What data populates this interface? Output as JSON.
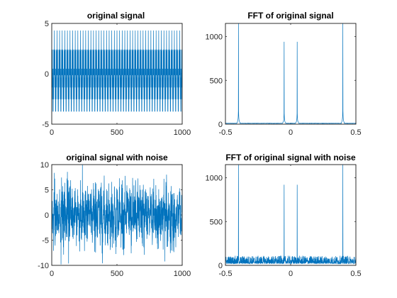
{
  "figure": {
    "background": "#ffffff",
    "line_color": "#0072BD"
  },
  "chart_data": [
    {
      "type": "line",
      "title": "original signal",
      "xlabel": "",
      "ylabel": "",
      "xlim": [
        0,
        1000
      ],
      "ylim": [
        -5,
        5
      ],
      "xticks": [
        0,
        500,
        1000
      ],
      "yticks": [
        -5,
        0,
        5
      ],
      "grid": false,
      "series": [
        {
          "signal": "sum_of_sinusoids",
          "n_samples": 1000,
          "components": [
            {
              "frequency": 0.05,
              "amplitude": 1.9
            },
            {
              "frequency": 0.4,
              "amplitude": 2.4
            }
          ],
          "envelope": [
            -4.3,
            4.3
          ]
        }
      ]
    },
    {
      "type": "line",
      "title": "FFT of original signal",
      "xlabel": "",
      "ylabel": "",
      "xlim": [
        -0.5,
        0.5
      ],
      "ylim": [
        0,
        1150
      ],
      "xticks": [
        -0.5,
        0,
        0.5
      ],
      "yticks": [
        0,
        500,
        1000
      ],
      "grid": false,
      "series": [
        {
          "peaks": [
            {
              "x": -0.4,
              "y": 1150
            },
            {
              "x": -0.05,
              "y": 940
            },
            {
              "x": 0.05,
              "y": 940
            },
            {
              "x": 0.4,
              "y": 1150
            }
          ],
          "baseline": 8
        }
      ]
    },
    {
      "type": "line",
      "title": "original signal with noise",
      "xlabel": "",
      "ylabel": "",
      "xlim": [
        0,
        1000
      ],
      "ylim": [
        -10,
        10
      ],
      "xticks": [
        0,
        500,
        1000
      ],
      "yticks": [
        -10,
        -5,
        0,
        5,
        10
      ],
      "grid": false,
      "series": [
        {
          "signal": "sum_of_sinusoids_plus_noise",
          "n_samples": 1000,
          "components": [
            {
              "frequency": 0.05,
              "amplitude": 1.9
            },
            {
              "frequency": 0.4,
              "amplitude": 2.4
            }
          ],
          "noise_std": 2.3
        }
      ]
    },
    {
      "type": "line",
      "title": "FFT of original signal with noise",
      "xlabel": "",
      "ylabel": "",
      "xlim": [
        -0.5,
        0.5
      ],
      "ylim": [
        0,
        1150
      ],
      "xticks": [
        -0.5,
        0,
        0.5
      ],
      "yticks": [
        0,
        500,
        1000
      ],
      "grid": false,
      "series": [
        {
          "peaks": [
            {
              "x": -0.4,
              "y": 1150
            },
            {
              "x": -0.05,
              "y": 920
            },
            {
              "x": 0.05,
              "y": 920
            },
            {
              "x": 0.4,
              "y": 1150
            }
          ],
          "noise_floor": [
            20,
            110
          ]
        }
      ]
    }
  ]
}
